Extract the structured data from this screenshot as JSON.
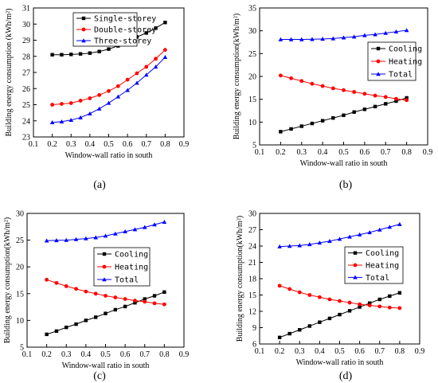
{
  "chart_data": [
    {
      "type": "line",
      "caption": "(a)",
      "xlabel": "Window-wall ratio in south",
      "ylabel": "Building energy consumption (kWh/m²)",
      "x": [
        0.2,
        0.25,
        0.3,
        0.35,
        0.4,
        0.45,
        0.5,
        0.55,
        0.6,
        0.65,
        0.7,
        0.75,
        0.8
      ],
      "xlim": [
        0.1,
        0.9
      ],
      "ylim": [
        23,
        31
      ],
      "xticks": [
        "0.1",
        "0.2",
        "0.3",
        "0.4",
        "0.5",
        "0.6",
        "0.7",
        "0.8",
        "0.9"
      ],
      "yticks": [
        "23",
        "24",
        "25",
        "26",
        "27",
        "28",
        "29",
        "30",
        "31"
      ],
      "legend": "top-left",
      "grid": false,
      "series": [
        {
          "name": "Single-storey",
          "color": "#000000",
          "marker": "square",
          "values": [
            28.1,
            28.1,
            28.12,
            28.15,
            28.2,
            28.3,
            28.45,
            28.65,
            28.9,
            29.2,
            29.45,
            29.75,
            30.1
          ]
        },
        {
          "name": "Double-storey",
          "color": "#ff0000",
          "marker": "circle",
          "values": [
            25.0,
            25.05,
            25.1,
            25.25,
            25.4,
            25.6,
            25.85,
            26.15,
            26.55,
            26.95,
            27.35,
            27.85,
            28.4
          ]
        },
        {
          "name": "Three-storey",
          "color": "#0000ff",
          "marker": "triangle",
          "values": [
            23.9,
            23.95,
            24.05,
            24.2,
            24.45,
            24.75,
            25.1,
            25.5,
            25.9,
            26.35,
            26.85,
            27.35,
            27.95
          ]
        }
      ]
    },
    {
      "type": "line",
      "caption": "(b)",
      "xlabel": "Window-wall ratio in south",
      "ylabel": "Building energy consumption(kWh/m²)",
      "x": [
        0.2,
        0.25,
        0.3,
        0.35,
        0.4,
        0.45,
        0.5,
        0.55,
        0.6,
        0.65,
        0.7,
        0.75,
        0.8
      ],
      "xlim": [
        0.1,
        0.9
      ],
      "ylim": [
        5,
        35
      ],
      "xticks": [
        "0.1",
        "0.2",
        "0.3",
        "0.4",
        "0.5",
        "0.6",
        "0.7",
        "0.8",
        "0.9"
      ],
      "yticks": [
        "5",
        "10",
        "15",
        "20",
        "25",
        "30",
        "35"
      ],
      "legend": "center-right",
      "grid": false,
      "series": [
        {
          "name": "Cooling",
          "color": "#000000",
          "marker": "square",
          "values": [
            7.9,
            8.5,
            9.1,
            9.7,
            10.3,
            10.9,
            11.5,
            12.2,
            12.8,
            13.4,
            14.0,
            14.6,
            15.3
          ]
        },
        {
          "name": "Heating",
          "color": "#ff0000",
          "marker": "circle",
          "values": [
            20.2,
            19.6,
            19.0,
            18.4,
            17.9,
            17.4,
            17.0,
            16.6,
            16.2,
            15.8,
            15.5,
            15.1,
            14.8
          ]
        },
        {
          "name": "Total",
          "color": "#0000ff",
          "marker": "triangle",
          "values": [
            28.1,
            28.1,
            28.1,
            28.15,
            28.2,
            28.3,
            28.5,
            28.7,
            29.0,
            29.2,
            29.5,
            29.8,
            30.1
          ]
        }
      ]
    },
    {
      "type": "line",
      "caption": "(c)",
      "xlabel": "Window-wall ratio in south",
      "ylabel": "Building energy consumption(kWh/m²)",
      "x": [
        0.2,
        0.25,
        0.3,
        0.35,
        0.4,
        0.45,
        0.5,
        0.55,
        0.6,
        0.65,
        0.7,
        0.75,
        0.8
      ],
      "xlim": [
        0.1,
        0.9
      ],
      "ylim": [
        5,
        30
      ],
      "xticks": [
        "0.1",
        "0.2",
        "0.3",
        "0.4",
        "0.5",
        "0.6",
        "0.7",
        "0.8",
        "0.9"
      ],
      "yticks": [
        "5",
        "10",
        "15",
        "20",
        "25",
        "30"
      ],
      "legend": "center-right",
      "grid": false,
      "series": [
        {
          "name": "Cooling",
          "color": "#000000",
          "marker": "square",
          "values": [
            7.4,
            8.0,
            8.7,
            9.3,
            10.0,
            10.6,
            11.3,
            12.0,
            12.6,
            13.3,
            14.0,
            14.6,
            15.3
          ]
        },
        {
          "name": "Heating",
          "color": "#ff0000",
          "marker": "circle",
          "values": [
            17.6,
            17.0,
            16.4,
            15.9,
            15.4,
            15.0,
            14.6,
            14.3,
            14.0,
            13.7,
            13.5,
            13.2,
            13.0
          ]
        },
        {
          "name": "Total",
          "color": "#0000ff",
          "marker": "triangle",
          "values": [
            24.9,
            24.95,
            25.0,
            25.15,
            25.3,
            25.5,
            25.8,
            26.2,
            26.6,
            27.0,
            27.4,
            27.9,
            28.4
          ]
        }
      ]
    },
    {
      "type": "line",
      "caption": "(d)",
      "xlabel": "Window-wall ratio in south",
      "ylabel": "Building energy consumption(kWh/m²)",
      "x": [
        0.2,
        0.25,
        0.3,
        0.35,
        0.4,
        0.45,
        0.5,
        0.55,
        0.6,
        0.65,
        0.7,
        0.75,
        0.8
      ],
      "xlim": [
        0.1,
        0.9
      ],
      "ylim": [
        6,
        30
      ],
      "xticks": [
        "0.1",
        "0.2",
        "0.3",
        "0.4",
        "0.5",
        "0.6",
        "0.7",
        "0.8",
        "0.9"
      ],
      "yticks": [
        "6",
        "9",
        "12",
        "15",
        "18",
        "21",
        "24",
        "27",
        "30"
      ],
      "legend": "center-right",
      "grid": false,
      "series": [
        {
          "name": "Cooling",
          "color": "#000000",
          "marker": "square",
          "values": [
            7.2,
            7.9,
            8.6,
            9.3,
            10.0,
            10.7,
            11.4,
            12.1,
            12.8,
            13.5,
            14.2,
            14.8,
            15.4
          ]
        },
        {
          "name": "Heating",
          "color": "#ff0000",
          "marker": "circle",
          "values": [
            16.7,
            16.1,
            15.5,
            15.0,
            14.6,
            14.2,
            13.9,
            13.6,
            13.3,
            13.1,
            12.9,
            12.7,
            12.6
          ]
        },
        {
          "name": "Total",
          "color": "#0000ff",
          "marker": "triangle",
          "values": [
            23.9,
            24.0,
            24.1,
            24.3,
            24.6,
            24.9,
            25.3,
            25.7,
            26.1,
            26.5,
            27.0,
            27.5,
            28.0
          ]
        }
      ]
    }
  ]
}
